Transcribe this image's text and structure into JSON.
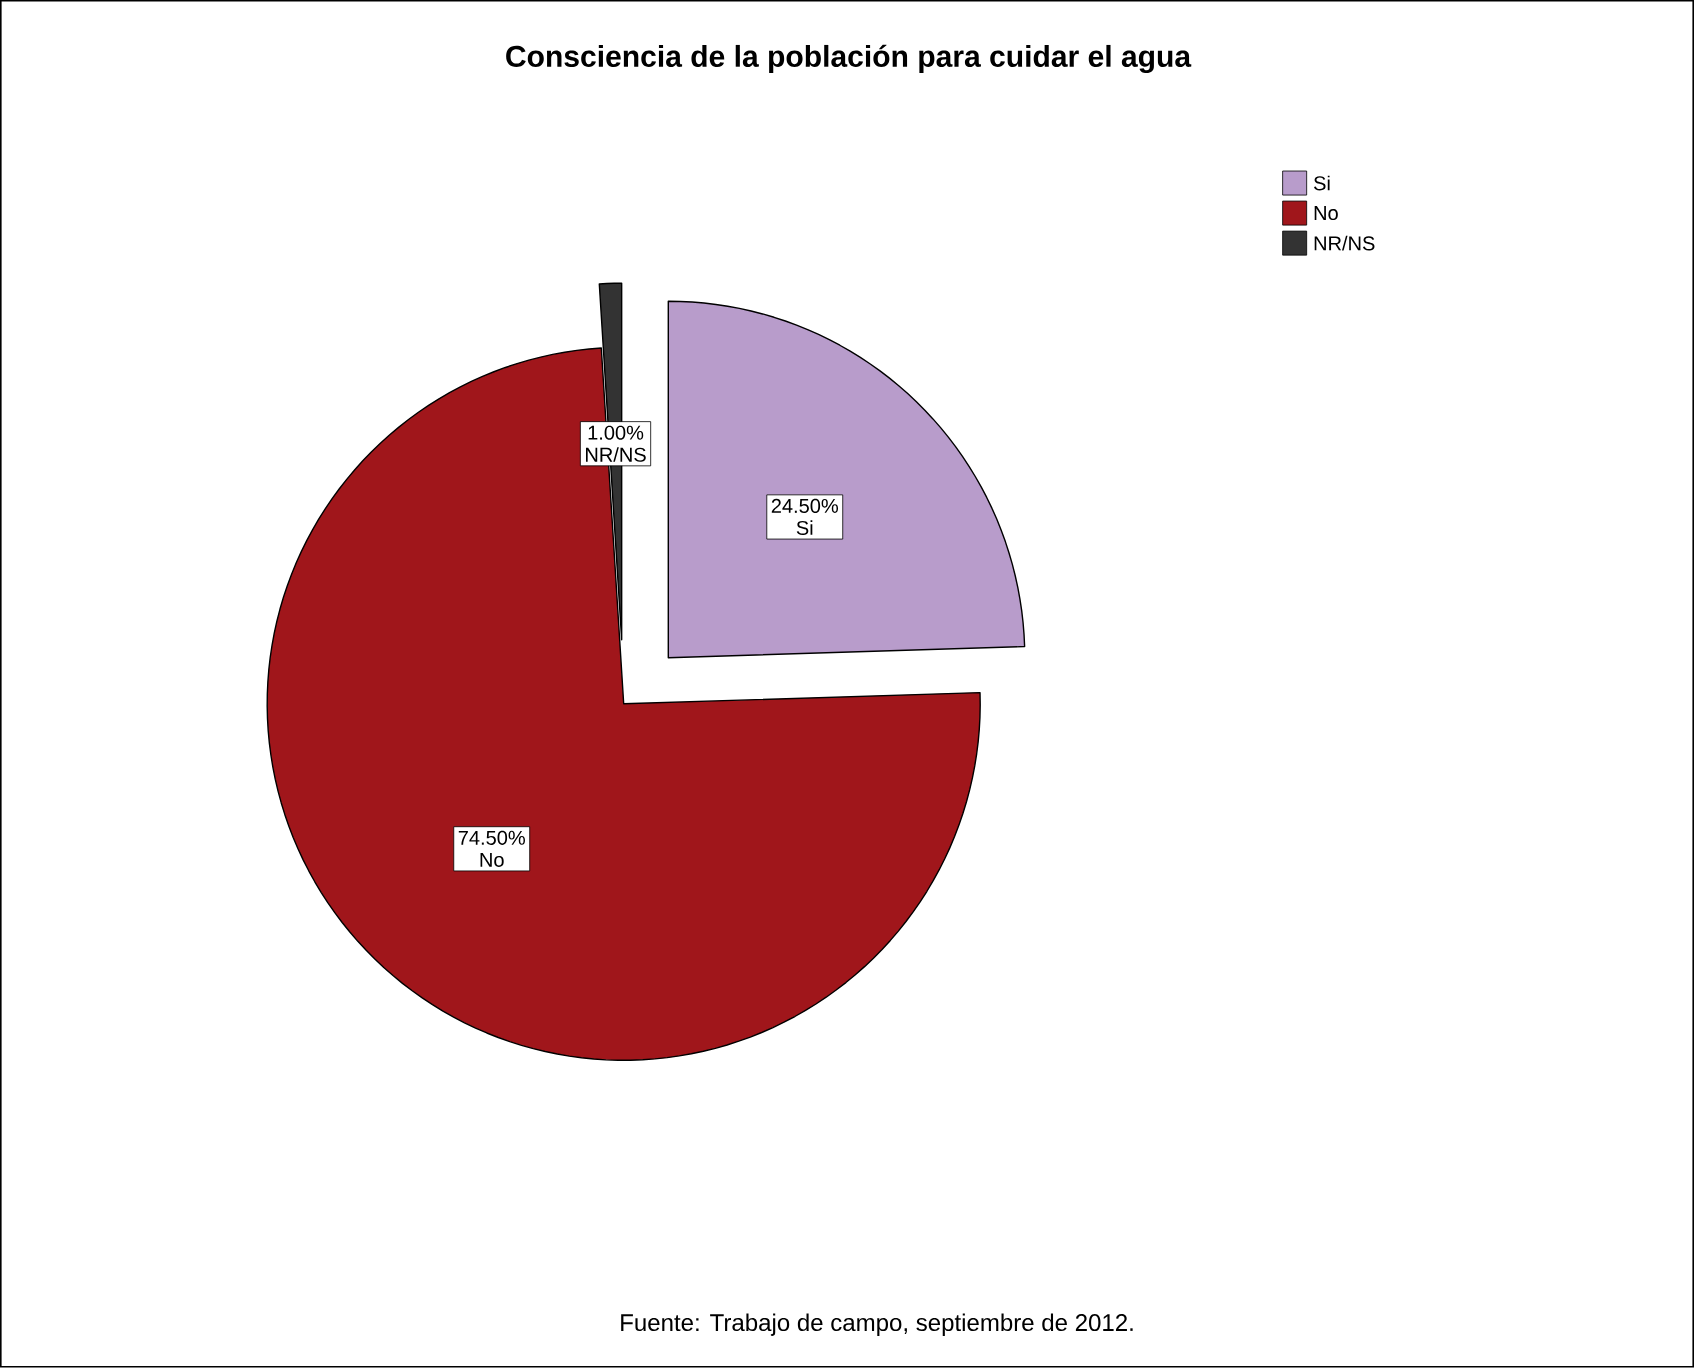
{
  "chart_data": {
    "type": "pie",
    "title": "Consciencia de la población para cuidar el agua",
    "categories": [
      "Si",
      "No",
      "NR/NS"
    ],
    "values": [
      24.5,
      74.5,
      1.0
    ],
    "colors": [
      "#b89ccb",
      "#a0161b",
      "#333333"
    ],
    "value_labels": [
      "24.50%",
      "74.50%",
      "1.00%"
    ],
    "legend": "top right",
    "annotations": [
      "Fuente: Trabajo de campo, septiembre de 2012."
    ]
  }
}
